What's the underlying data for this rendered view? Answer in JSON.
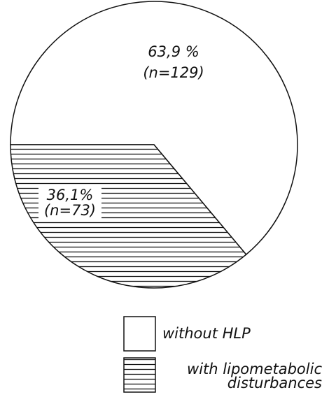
{
  "chart_data": {
    "type": "pie",
    "categories": [
      "without HLP",
      "with lipometabolic disturbances"
    ],
    "values": [
      63.9,
      36.1
    ],
    "value_labels": [
      "63,9 %",
      "36,1%"
    ],
    "annotations": [
      "(n=129)",
      "(n=73)"
    ],
    "colors": [
      "#ffffff",
      "#ffffff"
    ],
    "hatch": [
      false,
      true
    ]
  }
}
